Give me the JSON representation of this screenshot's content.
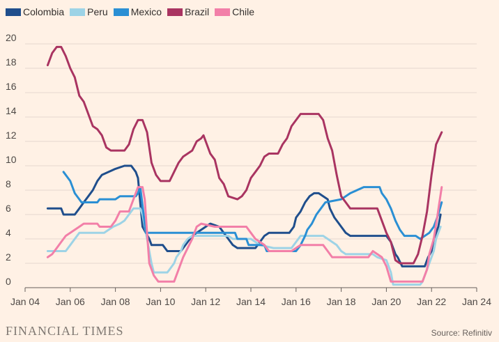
{
  "chart_data": {
    "type": "line",
    "title": "",
    "xlabel": "",
    "ylabel": "",
    "x_ticks": [
      "Jan 04",
      "Jan 06",
      "Jan 08",
      "Jan 10",
      "Jan 12",
      "Jan 14",
      "Jan 16",
      "Jan 18",
      "Jan 20",
      "Jan 22",
      "Jan 24"
    ],
    "y_ticks": [
      "0",
      "2",
      "4",
      "6",
      "8",
      "10",
      "12",
      "14",
      "16",
      "18",
      "20"
    ],
    "xlim": [
      2004.0,
      2024.0
    ],
    "ylim": [
      0,
      20
    ],
    "grid": "horizontal",
    "legend_position": "top-left",
    "series": [
      {
        "name": "Colombia",
        "color": "#1f4e8c",
        "points": [
          [
            2005.0,
            6.5
          ],
          [
            2005.6,
            6.5
          ],
          [
            2005.7,
            6.0
          ],
          [
            2006.2,
            6.0
          ],
          [
            2006.4,
            6.5
          ],
          [
            2006.6,
            7.0
          ],
          [
            2006.8,
            7.5
          ],
          [
            2007.0,
            8.0
          ],
          [
            2007.2,
            8.75
          ],
          [
            2007.4,
            9.25
          ],
          [
            2007.7,
            9.5
          ],
          [
            2008.0,
            9.75
          ],
          [
            2008.4,
            10.0
          ],
          [
            2008.7,
            10.0
          ],
          [
            2008.9,
            9.5
          ],
          [
            2009.0,
            9.0
          ],
          [
            2009.1,
            7.0
          ],
          [
            2009.2,
            5.0
          ],
          [
            2009.35,
            4.5
          ],
          [
            2009.5,
            4.0
          ],
          [
            2009.6,
            3.5
          ],
          [
            2010.1,
            3.5
          ],
          [
            2010.3,
            3.0
          ],
          [
            2010.9,
            3.0
          ],
          [
            2011.0,
            3.25
          ],
          [
            2011.2,
            3.75
          ],
          [
            2011.4,
            4.25
          ],
          [
            2011.6,
            4.5
          ],
          [
            2011.8,
            4.75
          ],
          [
            2012.0,
            5.0
          ],
          [
            2012.2,
            5.25
          ],
          [
            2012.6,
            5.0
          ],
          [
            2012.8,
            4.5
          ],
          [
            2013.0,
            4.0
          ],
          [
            2013.2,
            3.5
          ],
          [
            2013.4,
            3.25
          ],
          [
            2014.2,
            3.25
          ],
          [
            2014.4,
            3.75
          ],
          [
            2014.6,
            4.25
          ],
          [
            2014.8,
            4.5
          ],
          [
            2015.7,
            4.5
          ],
          [
            2015.9,
            5.0
          ],
          [
            2016.0,
            5.75
          ],
          [
            2016.2,
            6.25
          ],
          [
            2016.4,
            7.0
          ],
          [
            2016.6,
            7.5
          ],
          [
            2016.8,
            7.75
          ],
          [
            2017.0,
            7.75
          ],
          [
            2017.2,
            7.5
          ],
          [
            2017.4,
            7.25
          ],
          [
            2017.5,
            6.5
          ],
          [
            2017.7,
            5.75
          ],
          [
            2017.9,
            5.25
          ],
          [
            2018.0,
            5.0
          ],
          [
            2018.2,
            4.5
          ],
          [
            2018.4,
            4.25
          ],
          [
            2020.0,
            4.25
          ],
          [
            2020.2,
            3.75
          ],
          [
            2020.4,
            2.75
          ],
          [
            2020.5,
            2.5
          ],
          [
            2020.7,
            1.75
          ],
          [
            2021.7,
            1.75
          ],
          [
            2021.85,
            2.5
          ],
          [
            2022.0,
            3.0
          ],
          [
            2022.1,
            4.0
          ],
          [
            2022.3,
            5.0
          ],
          [
            2022.4,
            6.0
          ]
        ]
      },
      {
        "name": "Peru",
        "color": "#9dd3e6",
        "points": [
          [
            2005.0,
            3.0
          ],
          [
            2005.5,
            3.0
          ],
          [
            2005.8,
            3.0
          ],
          [
            2006.0,
            3.5
          ],
          [
            2006.2,
            4.0
          ],
          [
            2006.4,
            4.5
          ],
          [
            2007.5,
            4.5
          ],
          [
            2007.7,
            4.75
          ],
          [
            2007.9,
            5.0
          ],
          [
            2008.2,
            5.25
          ],
          [
            2008.4,
            5.5
          ],
          [
            2008.6,
            6.0
          ],
          [
            2008.8,
            6.5
          ],
          [
            2009.1,
            6.5
          ],
          [
            2009.2,
            6.0
          ],
          [
            2009.3,
            5.0
          ],
          [
            2009.4,
            4.0
          ],
          [
            2009.5,
            3.0
          ],
          [
            2009.6,
            2.0
          ],
          [
            2009.7,
            1.25
          ],
          [
            2010.3,
            1.25
          ],
          [
            2010.4,
            1.5
          ],
          [
            2010.6,
            2.0
          ],
          [
            2010.7,
            2.5
          ],
          [
            2010.8,
            2.75
          ],
          [
            2010.9,
            3.0
          ],
          [
            2011.0,
            3.5
          ],
          [
            2011.2,
            4.0
          ],
          [
            2011.4,
            4.25
          ],
          [
            2013.0,
            4.25
          ],
          [
            2013.2,
            4.0
          ],
          [
            2014.0,
            4.0
          ],
          [
            2014.2,
            3.75
          ],
          [
            2014.4,
            3.5
          ],
          [
            2015.0,
            3.25
          ],
          [
            2015.8,
            3.25
          ],
          [
            2016.0,
            3.75
          ],
          [
            2016.2,
            4.25
          ],
          [
            2017.2,
            4.25
          ],
          [
            2017.4,
            4.0
          ],
          [
            2017.6,
            3.75
          ],
          [
            2017.8,
            3.5
          ],
          [
            2018.0,
            3.0
          ],
          [
            2018.2,
            2.75
          ],
          [
            2019.4,
            2.75
          ],
          [
            2019.6,
            2.5
          ],
          [
            2020.0,
            2.25
          ],
          [
            2020.2,
            1.25
          ],
          [
            2020.3,
            0.25
          ],
          [
            2021.5,
            0.25
          ],
          [
            2021.6,
            0.5
          ],
          [
            2021.7,
            1.0
          ],
          [
            2021.9,
            2.0
          ],
          [
            2022.1,
            3.0
          ],
          [
            2022.2,
            4.0
          ],
          [
            2022.3,
            4.5
          ],
          [
            2022.4,
            5.0
          ]
        ]
      },
      {
        "name": "Mexico",
        "color": "#2a8fd4",
        "points": [
          [
            2005.7,
            9.5
          ],
          [
            2006.0,
            8.75
          ],
          [
            2006.2,
            7.75
          ],
          [
            2006.4,
            7.25
          ],
          [
            2006.5,
            7.0
          ],
          [
            2007.2,
            7.0
          ],
          [
            2007.3,
            7.25
          ],
          [
            2008.0,
            7.25
          ],
          [
            2008.2,
            7.5
          ],
          [
            2008.9,
            7.5
          ],
          [
            2009.0,
            7.75
          ],
          [
            2009.1,
            8.25
          ],
          [
            2009.15,
            7.5
          ],
          [
            2009.25,
            6.0
          ],
          [
            2009.35,
            4.5
          ],
          [
            2013.3,
            4.5
          ],
          [
            2013.4,
            4.0
          ],
          [
            2013.8,
            4.0
          ],
          [
            2013.9,
            3.5
          ],
          [
            2014.6,
            3.5
          ],
          [
            2014.7,
            3.0
          ],
          [
            2016.0,
            3.0
          ],
          [
            2016.2,
            3.5
          ],
          [
            2016.4,
            4.25
          ],
          [
            2016.5,
            4.75
          ],
          [
            2016.7,
            5.25
          ],
          [
            2016.9,
            6.0
          ],
          [
            2017.1,
            6.5
          ],
          [
            2017.3,
            7.0
          ],
          [
            2018.0,
            7.25
          ],
          [
            2018.2,
            7.5
          ],
          [
            2018.4,
            7.75
          ],
          [
            2019.0,
            8.25
          ],
          [
            2019.7,
            8.25
          ],
          [
            2019.8,
            7.75
          ],
          [
            2020.0,
            7.25
          ],
          [
            2020.2,
            6.5
          ],
          [
            2020.4,
            5.5
          ],
          [
            2020.6,
            4.75
          ],
          [
            2020.8,
            4.25
          ],
          [
            2021.3,
            4.25
          ],
          [
            2021.5,
            4.0
          ],
          [
            2021.7,
            4.25
          ],
          [
            2021.9,
            4.5
          ],
          [
            2022.1,
            5.0
          ],
          [
            2022.3,
            6.0
          ],
          [
            2022.45,
            7.0
          ]
        ]
      },
      {
        "name": "Brazil",
        "color": "#a93461",
        "points": [
          [
            2005.0,
            18.25
          ],
          [
            2005.2,
            19.25
          ],
          [
            2005.4,
            19.75
          ],
          [
            2005.6,
            19.75
          ],
          [
            2005.8,
            19.0
          ],
          [
            2006.0,
            18.0
          ],
          [
            2006.2,
            17.25
          ],
          [
            2006.4,
            15.75
          ],
          [
            2006.6,
            15.25
          ],
          [
            2006.8,
            14.25
          ],
          [
            2007.0,
            13.25
          ],
          [
            2007.2,
            13.0
          ],
          [
            2007.4,
            12.5
          ],
          [
            2007.6,
            11.5
          ],
          [
            2007.8,
            11.25
          ],
          [
            2008.4,
            11.25
          ],
          [
            2008.6,
            11.75
          ],
          [
            2008.8,
            13.0
          ],
          [
            2009.0,
            13.75
          ],
          [
            2009.2,
            13.75
          ],
          [
            2009.4,
            12.75
          ],
          [
            2009.6,
            10.25
          ],
          [
            2009.8,
            9.25
          ],
          [
            2010.0,
            8.75
          ],
          [
            2010.4,
            8.75
          ],
          [
            2010.6,
            9.5
          ],
          [
            2010.8,
            10.25
          ],
          [
            2011.0,
            10.75
          ],
          [
            2011.4,
            11.25
          ],
          [
            2011.6,
            12.0
          ],
          [
            2011.8,
            12.25
          ],
          [
            2011.9,
            12.5
          ],
          [
            2012.0,
            12.0
          ],
          [
            2012.2,
            11.0
          ],
          [
            2012.4,
            10.5
          ],
          [
            2012.6,
            9.0
          ],
          [
            2012.8,
            8.5
          ],
          [
            2013.0,
            7.5
          ],
          [
            2013.4,
            7.25
          ],
          [
            2013.6,
            7.5
          ],
          [
            2013.8,
            8.0
          ],
          [
            2014.0,
            9.0
          ],
          [
            2014.2,
            9.5
          ],
          [
            2014.4,
            10.0
          ],
          [
            2014.6,
            10.75
          ],
          [
            2014.8,
            11.0
          ],
          [
            2015.2,
            11.0
          ],
          [
            2015.4,
            11.75
          ],
          [
            2015.6,
            12.25
          ],
          [
            2015.8,
            13.25
          ],
          [
            2016.0,
            13.75
          ],
          [
            2016.2,
            14.25
          ],
          [
            2017.0,
            14.25
          ],
          [
            2017.2,
            13.75
          ],
          [
            2017.4,
            12.25
          ],
          [
            2017.6,
            11.25
          ],
          [
            2017.8,
            9.25
          ],
          [
            2018.0,
            7.5
          ],
          [
            2018.2,
            7.0
          ],
          [
            2018.4,
            6.5
          ],
          [
            2019.6,
            6.5
          ],
          [
            2019.8,
            5.5
          ],
          [
            2020.0,
            4.5
          ],
          [
            2020.2,
            3.75
          ],
          [
            2020.4,
            2.25
          ],
          [
            2020.6,
            2.0
          ],
          [
            2021.2,
            2.0
          ],
          [
            2021.4,
            2.75
          ],
          [
            2021.6,
            4.25
          ],
          [
            2021.8,
            6.25
          ],
          [
            2022.0,
            9.25
          ],
          [
            2022.2,
            11.75
          ],
          [
            2022.45,
            12.75
          ]
        ]
      },
      {
        "name": "Chile",
        "color": "#f27fa8",
        "points": [
          [
            2005.0,
            2.5
          ],
          [
            2005.2,
            2.75
          ],
          [
            2005.4,
            3.25
          ],
          [
            2005.6,
            3.75
          ],
          [
            2005.8,
            4.25
          ],
          [
            2006.0,
            4.5
          ],
          [
            2006.2,
            4.75
          ],
          [
            2006.4,
            5.0
          ],
          [
            2006.6,
            5.25
          ],
          [
            2007.2,
            5.25
          ],
          [
            2007.3,
            5.0
          ],
          [
            2007.8,
            5.0
          ],
          [
            2008.0,
            5.5
          ],
          [
            2008.2,
            6.25
          ],
          [
            2008.6,
            6.25
          ],
          [
            2008.8,
            7.25
          ],
          [
            2009.0,
            8.25
          ],
          [
            2009.2,
            8.25
          ],
          [
            2009.3,
            7.25
          ],
          [
            2009.4,
            4.5
          ],
          [
            2009.5,
            2.0
          ],
          [
            2009.7,
            1.0
          ],
          [
            2009.9,
            0.5
          ],
          [
            2010.6,
            0.5
          ],
          [
            2010.8,
            1.5
          ],
          [
            2011.0,
            2.5
          ],
          [
            2011.2,
            3.25
          ],
          [
            2011.4,
            4.0
          ],
          [
            2011.6,
            5.0
          ],
          [
            2011.8,
            5.25
          ],
          [
            2012.4,
            5.0
          ],
          [
            2013.8,
            5.0
          ],
          [
            2014.0,
            4.5
          ],
          [
            2014.2,
            4.0
          ],
          [
            2014.6,
            3.5
          ],
          [
            2014.8,
            3.0
          ],
          [
            2015.8,
            3.0
          ],
          [
            2016.0,
            3.25
          ],
          [
            2016.2,
            3.5
          ],
          [
            2017.2,
            3.5
          ],
          [
            2017.4,
            3.0
          ],
          [
            2017.6,
            2.5
          ],
          [
            2019.2,
            2.5
          ],
          [
            2019.4,
            3.0
          ],
          [
            2019.8,
            2.5
          ],
          [
            2020.0,
            1.75
          ],
          [
            2020.2,
            0.5
          ],
          [
            2021.6,
            0.5
          ],
          [
            2021.8,
            1.5
          ],
          [
            2021.9,
            2.75
          ],
          [
            2022.1,
            4.0
          ],
          [
            2022.25,
            5.75
          ],
          [
            2022.35,
            7.0
          ],
          [
            2022.45,
            8.25
          ]
        ]
      }
    ]
  },
  "footer": {
    "brand": "FINANCIAL TIMES",
    "source": "Source: Refinitiv"
  },
  "colors": {
    "background": "#fff1e5",
    "grid": "#e4d8ce",
    "axis": "#66605c"
  }
}
